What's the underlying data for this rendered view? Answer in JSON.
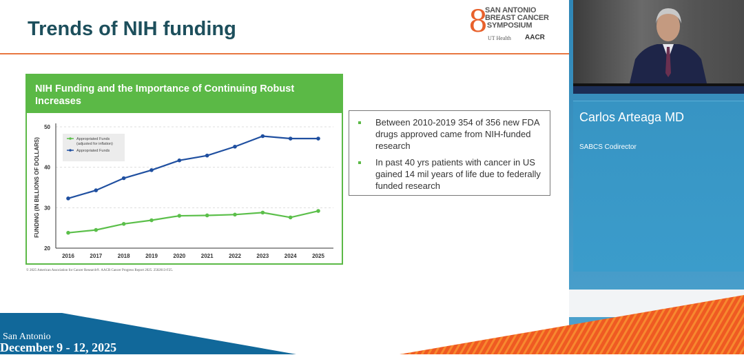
{
  "slide": {
    "title": "Trends of NIH funding",
    "logo_text": {
      "line1": "SAN ANTONIO",
      "line2": "BREAST CANCER",
      "line3": "SYMPOSIUM",
      "partner1": "UT Health",
      "partner2": "AACR"
    },
    "bullets": [
      "Between 2010-2019 354 of 356 new FDA drugs approved came from NIH-funded research",
      "In past 40 yrs patients with cancer in US gained 14 mil years of life due to federally funded research"
    ],
    "credit": "© 2025 American Association for Cancer Research®. AACR Cancer Progress Report 2025. 2502013-F25."
  },
  "chart_data": {
    "type": "line",
    "title": "NIH Funding and the Importance of Continuing Robust Increases",
    "ylabel": "FUNDING (IN BILLIONS OF DOLLARS)",
    "xlabel": "",
    "ylim": [
      20,
      50
    ],
    "yticks": [
      20,
      30,
      40,
      50
    ],
    "grid": true,
    "legend_position": "top-left",
    "x": [
      "2016",
      "2017",
      "2018",
      "2019",
      "2020",
      "2021",
      "2022",
      "2023",
      "2024",
      "2025"
    ],
    "series": [
      {
        "name": "Appropriated Funds (adjusted for inflation)",
        "color": "#5bbf4a",
        "values": [
          23.8,
          24.5,
          26.0,
          26.9,
          28.0,
          28.1,
          28.3,
          28.8,
          27.6,
          29.2
        ]
      },
      {
        "name": "Appropriated Funds",
        "color": "#1f4fa0",
        "values": [
          32.3,
          34.3,
          37.3,
          39.3,
          41.7,
          42.9,
          45.1,
          47.7,
          47.1,
          47.1
        ]
      }
    ],
    "legend_lines": [
      [
        "Appropriated Funds",
        "(adjusted for inflation)"
      ],
      [
        "Appropriated Funds"
      ]
    ]
  },
  "speaker": {
    "name": "Carlos Arteaga MD",
    "role": "SABCS Codirector"
  },
  "event": {
    "city": "San Antonio",
    "dates": "December 9 - 12, 2025"
  },
  "colors": {
    "accent_orange": "#e8763f",
    "green": "#5bb946",
    "blue": "#1f4fa0",
    "panel_blue": "#3794c3",
    "banner_blue": "#11689a"
  }
}
